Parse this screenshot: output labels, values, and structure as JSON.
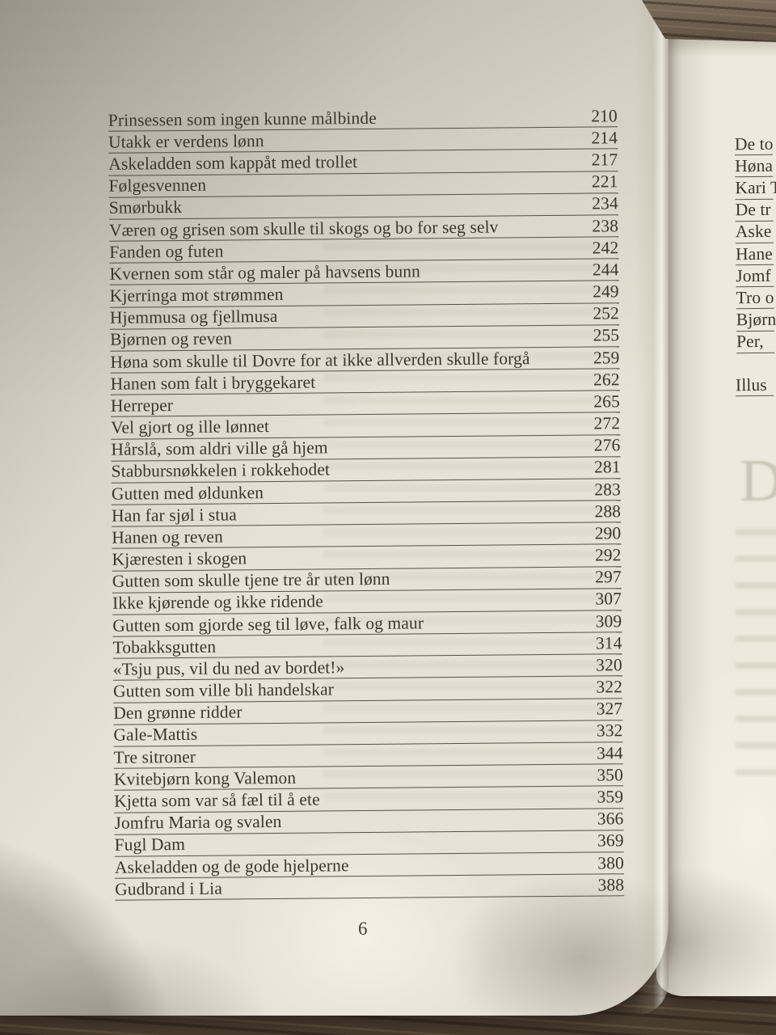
{
  "toc": {
    "page_number": "6",
    "entries": [
      {
        "title": "Prinsessen som ingen kunne målbinde",
        "page": "210"
      },
      {
        "title": "Utakk er verdens lønn",
        "page": "214"
      },
      {
        "title": "Askeladden som kappåt med trollet",
        "page": "217"
      },
      {
        "title": "Følgesvennen",
        "page": "221"
      },
      {
        "title": "Smørbukk",
        "page": "234"
      },
      {
        "title": "Væren og grisen som skulle til skogs og bo for seg selv",
        "page": "238"
      },
      {
        "title": "Fanden og futen",
        "page": "242"
      },
      {
        "title": "Kvernen som står og maler på havsens bunn",
        "page": "244"
      },
      {
        "title": "Kjerringa mot strømmen",
        "page": "249"
      },
      {
        "title": "Hjemmusa og fjellmusa",
        "page": "252"
      },
      {
        "title": "Bjørnen og reven",
        "page": "255"
      },
      {
        "title": "Høna som skulle til Dovre for at ikke allverden skulle forgå",
        "page": "259"
      },
      {
        "title": "Hanen som falt i bryggekaret",
        "page": "262"
      },
      {
        "title": "Herreper",
        "page": "265"
      },
      {
        "title": "Vel gjort og ille lønnet",
        "page": "272"
      },
      {
        "title": "Hårslå, som aldri ville gå hjem",
        "page": "276"
      },
      {
        "title": "Stabbursnøkkelen i rokkehodet",
        "page": "281"
      },
      {
        "title": "Gutten med øldunken",
        "page": "283"
      },
      {
        "title": "Han far sjøl i stua",
        "page": "288"
      },
      {
        "title": "Hanen og reven",
        "page": "290"
      },
      {
        "title": "Kjæresten i skogen",
        "page": "292"
      },
      {
        "title": "Gutten som skulle tjene tre år uten lønn",
        "page": "297"
      },
      {
        "title": "Ikke kjørende og ikke ridende",
        "page": "307"
      },
      {
        "title": "Gutten som gjorde seg til løve, falk og maur",
        "page": "309"
      },
      {
        "title": "Tobakksgutten",
        "page": "314"
      },
      {
        "title": "«Tsju pus, vil du ned av bordet!»",
        "page": "320"
      },
      {
        "title": "Gutten som ville bli handelskar",
        "page": "322"
      },
      {
        "title": "Den grønne ridder",
        "page": "327"
      },
      {
        "title": "Gale-Mattis",
        "page": "332"
      },
      {
        "title": "Tre sitroner",
        "page": "344"
      },
      {
        "title": "Kvitebjørn kong Valemon",
        "page": "350"
      },
      {
        "title": "Kjetta som var så fæl til å ete",
        "page": "359"
      },
      {
        "title": "Jomfru Maria og svalen",
        "page": "366"
      },
      {
        "title": "Fugl Dam",
        "page": "369"
      },
      {
        "title": "Askeladden og de gode hjelperne",
        "page": "380"
      },
      {
        "title": "Gudbrand i Lia",
        "page": "388"
      }
    ]
  },
  "facing_page": {
    "fragments": [
      "De to",
      "Høna",
      "Kari T",
      "De tr",
      "Aske",
      "Hane",
      "Jomf",
      "Tro o",
      "Bjørn",
      "Per,"
    ],
    "more_fragment": "Illus",
    "ghost_letter": "D"
  },
  "colors": {
    "paper": "#e7e2d5",
    "facing_paper": "#eee9dc",
    "ink": "#3b362d",
    "wood": "#5f5142"
  }
}
